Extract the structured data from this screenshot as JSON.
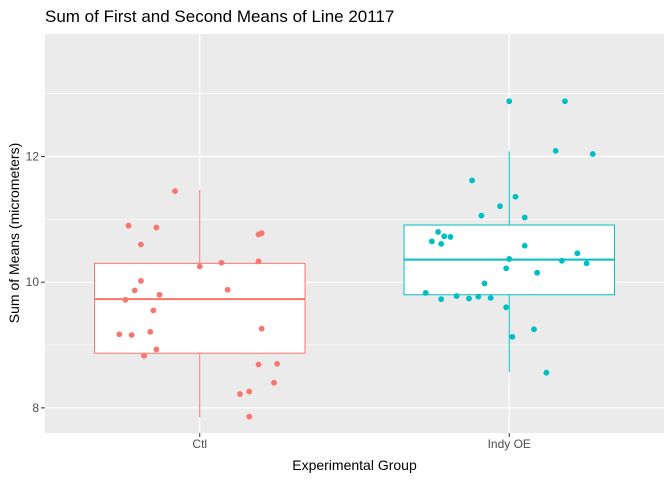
{
  "chart_data": {
    "type": "boxplot",
    "title": "Sum of First and Second Means of Line 20117",
    "xlabel": "Experimental Group",
    "ylabel": "Sum of Means (micrometers)",
    "categories": [
      "Ctl",
      "Indy OE"
    ],
    "y_ticks": [
      8,
      10,
      12
    ],
    "ylim": [
      7.6,
      13.95
    ],
    "grid": true,
    "legend": "none",
    "colors": {
      "Ctl": "#F8766D",
      "Indy OE": "#00BFC4",
      "panel": "#EBEBEB",
      "grid": "#FFFFFF"
    },
    "boxes": [
      {
        "group": "Ctl",
        "whisker_low": 7.85,
        "q1": 8.87,
        "median": 9.73,
        "q3": 10.3,
        "whisker_high": 11.47
      },
      {
        "group": "Indy OE",
        "whisker_low": 8.57,
        "q1": 9.8,
        "median": 10.36,
        "q3": 10.91,
        "whisker_high": 12.08
      }
    ],
    "points": [
      {
        "group": "Ctl",
        "jitter": -0.08,
        "y": 11.45
      },
      {
        "group": "Ctl",
        "jitter": -0.23,
        "y": 10.9
      },
      {
        "group": "Ctl",
        "jitter": -0.14,
        "y": 10.87
      },
      {
        "group": "Ctl",
        "jitter": 0.2,
        "y": 10.78
      },
      {
        "group": "Ctl",
        "jitter": 0.19,
        "y": 10.76
      },
      {
        "group": "Ctl",
        "jitter": -0.19,
        "y": 10.6
      },
      {
        "group": "Ctl",
        "jitter": 0.19,
        "y": 10.33
      },
      {
        "group": "Ctl",
        "jitter": 0.07,
        "y": 10.31
      },
      {
        "group": "Ctl",
        "jitter": 0.0,
        "y": 10.25
      },
      {
        "group": "Ctl",
        "jitter": -0.19,
        "y": 10.02
      },
      {
        "group": "Ctl",
        "jitter": 0.09,
        "y": 9.88
      },
      {
        "group": "Ctl",
        "jitter": -0.21,
        "y": 9.87
      },
      {
        "group": "Ctl",
        "jitter": -0.13,
        "y": 9.8
      },
      {
        "group": "Ctl",
        "jitter": -0.24,
        "y": 9.72
      },
      {
        "group": "Ctl",
        "jitter": -0.15,
        "y": 9.55
      },
      {
        "group": "Ctl",
        "jitter": 0.2,
        "y": 9.26
      },
      {
        "group": "Ctl",
        "jitter": -0.16,
        "y": 9.21
      },
      {
        "group": "Ctl",
        "jitter": -0.26,
        "y": 9.17
      },
      {
        "group": "Ctl",
        "jitter": -0.22,
        "y": 9.16
      },
      {
        "group": "Ctl",
        "jitter": -0.14,
        "y": 8.93
      },
      {
        "group": "Ctl",
        "jitter": -0.18,
        "y": 8.83
      },
      {
        "group": "Ctl",
        "jitter": 0.25,
        "y": 8.7
      },
      {
        "group": "Ctl",
        "jitter": 0.19,
        "y": 8.69
      },
      {
        "group": "Ctl",
        "jitter": 0.24,
        "y": 8.4
      },
      {
        "group": "Ctl",
        "jitter": 0.16,
        "y": 8.26
      },
      {
        "group": "Ctl",
        "jitter": 0.13,
        "y": 8.22
      },
      {
        "group": "Ctl",
        "jitter": 0.16,
        "y": 7.86
      },
      {
        "group": "Indy OE",
        "jitter": 0.0,
        "y": 12.88
      },
      {
        "group": "Indy OE",
        "jitter": 0.18,
        "y": 12.88
      },
      {
        "group": "Indy OE",
        "jitter": 0.15,
        "y": 12.09
      },
      {
        "group": "Indy OE",
        "jitter": 0.27,
        "y": 12.04
      },
      {
        "group": "Indy OE",
        "jitter": -0.12,
        "y": 11.62
      },
      {
        "group": "Indy OE",
        "jitter": 0.02,
        "y": 11.36
      },
      {
        "group": "Indy OE",
        "jitter": -0.03,
        "y": 11.21
      },
      {
        "group": "Indy OE",
        "jitter": -0.09,
        "y": 11.06
      },
      {
        "group": "Indy OE",
        "jitter": 0.05,
        "y": 11.03
      },
      {
        "group": "Indy OE",
        "jitter": -0.23,
        "y": 10.8
      },
      {
        "group": "Indy OE",
        "jitter": -0.21,
        "y": 10.73
      },
      {
        "group": "Indy OE",
        "jitter": -0.19,
        "y": 10.72
      },
      {
        "group": "Indy OE",
        "jitter": -0.25,
        "y": 10.65
      },
      {
        "group": "Indy OE",
        "jitter": -0.22,
        "y": 10.61
      },
      {
        "group": "Indy OE",
        "jitter": 0.05,
        "y": 10.58
      },
      {
        "group": "Indy OE",
        "jitter": 0.22,
        "y": 10.46
      },
      {
        "group": "Indy OE",
        "jitter": 0.0,
        "y": 10.37
      },
      {
        "group": "Indy OE",
        "jitter": 0.17,
        "y": 10.34
      },
      {
        "group": "Indy OE",
        "jitter": 0.25,
        "y": 10.3
      },
      {
        "group": "Indy OE",
        "jitter": -0.01,
        "y": 10.22
      },
      {
        "group": "Indy OE",
        "jitter": 0.09,
        "y": 10.15
      },
      {
        "group": "Indy OE",
        "jitter": -0.08,
        "y": 9.98
      },
      {
        "group": "Indy OE",
        "jitter": -0.27,
        "y": 9.83
      },
      {
        "group": "Indy OE",
        "jitter": -0.17,
        "y": 9.78
      },
      {
        "group": "Indy OE",
        "jitter": -0.1,
        "y": 9.77
      },
      {
        "group": "Indy OE",
        "jitter": -0.06,
        "y": 9.75
      },
      {
        "group": "Indy OE",
        "jitter": -0.13,
        "y": 9.74
      },
      {
        "group": "Indy OE",
        "jitter": -0.22,
        "y": 9.73
      },
      {
        "group": "Indy OE",
        "jitter": -0.01,
        "y": 9.6
      },
      {
        "group": "Indy OE",
        "jitter": 0.08,
        "y": 9.25
      },
      {
        "group": "Indy OE",
        "jitter": 0.01,
        "y": 9.13
      },
      {
        "group": "Indy OE",
        "jitter": 0.12,
        "y": 8.56
      }
    ]
  }
}
